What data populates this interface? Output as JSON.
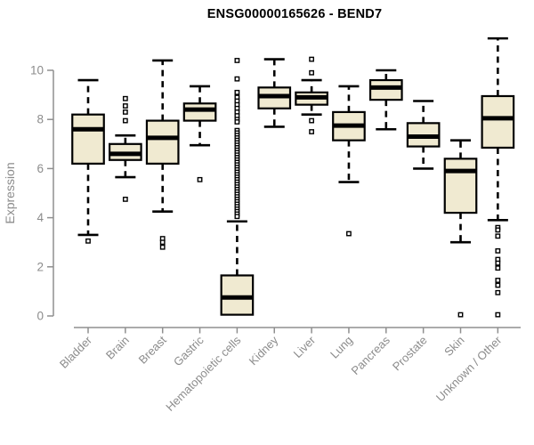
{
  "chart_data": {
    "type": "boxplot",
    "title": "ENSG00000165626 - BEND7",
    "ylabel": "Expression",
    "yticks": [
      0,
      2,
      4,
      6,
      8,
      10
    ],
    "ylim": [
      -0.5,
      11.5
    ],
    "grid": false,
    "categories": [
      "Bladder",
      "Brain",
      "Breast",
      "Gastric",
      "Hematopoietic cells",
      "Kidney",
      "Liver",
      "Lung",
      "Pancreas",
      "Prostate",
      "Skin",
      "Unknown / Other"
    ],
    "boxes": [
      {
        "category": "Bladder",
        "whisker_low": 3.3,
        "q1": 6.2,
        "median": 7.6,
        "q3": 8.2,
        "whisker_high": 9.6,
        "outliers": [
          3.05
        ]
      },
      {
        "category": "Brain",
        "whisker_low": 5.65,
        "q1": 6.35,
        "median": 6.6,
        "q3": 7.0,
        "whisker_high": 7.35,
        "outliers": [
          8.85,
          8.55,
          8.3,
          7.95,
          4.75
        ]
      },
      {
        "category": "Breast",
        "whisker_low": 4.25,
        "q1": 6.2,
        "median": 7.25,
        "q3": 7.95,
        "whisker_high": 10.4,
        "outliers": [
          3.15,
          3.0,
          2.8
        ]
      },
      {
        "category": "Gastric",
        "whisker_low": 6.95,
        "q1": 7.95,
        "median": 8.4,
        "q3": 8.65,
        "whisker_high": 9.35,
        "outliers": [
          5.55
        ]
      },
      {
        "category": "Hematopoietic cells",
        "whisker_low": 0.05,
        "q1": 0.05,
        "median": 0.75,
        "q3": 1.65,
        "whisker_high": 3.85,
        "outliers": [
          10.4,
          9.65,
          9.1,
          8.9,
          8.75,
          8.6,
          8.45,
          8.3,
          8.15,
          8.0,
          7.9,
          7.55,
          7.45,
          7.35,
          7.25,
          7.15,
          7.05,
          6.95,
          6.85,
          6.75,
          6.65,
          6.55,
          6.45,
          6.35,
          6.25,
          6.15,
          6.05,
          5.95,
          5.85,
          5.75,
          5.65,
          5.55,
          5.45,
          5.35,
          5.25,
          5.15,
          5.05,
          4.95,
          4.85,
          4.75,
          4.65,
          4.55,
          4.45,
          4.35,
          4.25,
          4.15,
          4.05
        ]
      },
      {
        "category": "Kidney",
        "whisker_low": 7.7,
        "q1": 8.45,
        "median": 8.95,
        "q3": 9.3,
        "whisker_high": 10.45,
        "outliers": []
      },
      {
        "category": "Liver",
        "whisker_low": 8.2,
        "q1": 8.6,
        "median": 8.9,
        "q3": 9.1,
        "whisker_high": 9.6,
        "outliers": [
          10.45,
          9.9,
          7.95,
          7.5
        ]
      },
      {
        "category": "Lung",
        "whisker_low": 5.45,
        "q1": 7.15,
        "median": 7.75,
        "q3": 8.3,
        "whisker_high": 9.35,
        "outliers": [
          3.35
        ]
      },
      {
        "category": "Pancreas",
        "whisker_low": 7.6,
        "q1": 8.8,
        "median": 9.3,
        "q3": 9.6,
        "whisker_high": 10.0,
        "outliers": []
      },
      {
        "category": "Prostate",
        "whisker_low": 6.0,
        "q1": 6.9,
        "median": 7.3,
        "q3": 7.85,
        "whisker_high": 8.75,
        "outliers": []
      },
      {
        "category": "Skin",
        "whisker_low": 3.0,
        "q1": 4.2,
        "median": 5.9,
        "q3": 6.4,
        "whisker_high": 7.15,
        "outliers": [
          0.05
        ]
      },
      {
        "category": "Unknown / Other",
        "whisker_low": 3.9,
        "q1": 6.85,
        "median": 8.05,
        "q3": 8.95,
        "whisker_high": 11.3,
        "outliers": [
          3.6,
          3.5,
          3.25,
          2.65,
          2.3,
          2.15,
          1.95,
          1.45,
          1.25,
          0.95,
          0.05
        ]
      }
    ],
    "colors": {
      "box_fill": "#F0EAD1",
      "box_stroke": "#000000",
      "median": "#000000",
      "whisker": "#000000",
      "axis": "#8f8f8f",
      "tick_text": "#8c8c8c",
      "title_text": "#000000",
      "background": "#ffffff"
    },
    "legend": null
  }
}
